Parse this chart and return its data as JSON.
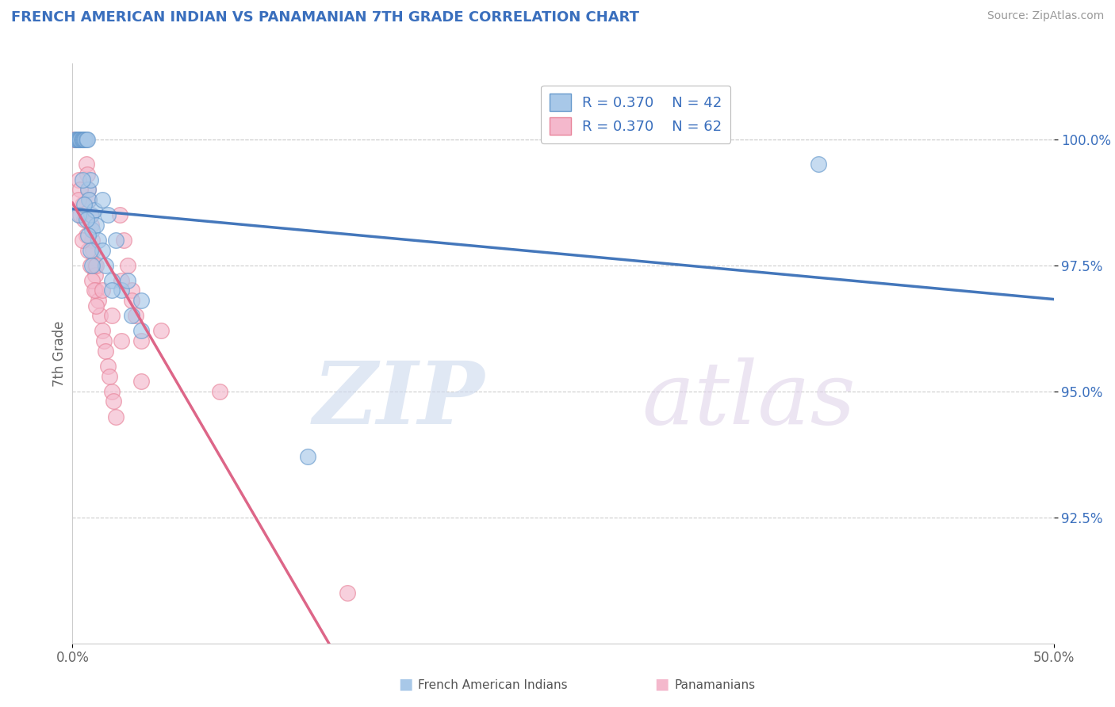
{
  "title": "FRENCH AMERICAN INDIAN VS PANAMANIAN 7TH GRADE CORRELATION CHART",
  "source": "Source: ZipAtlas.com",
  "ylabel": "7th Grade",
  "xlim": [
    0.0,
    50.0
  ],
  "ylim": [
    90.0,
    101.5
  ],
  "yticks": [
    92.5,
    95.0,
    97.5,
    100.0
  ],
  "ytick_labels": [
    "92.5%",
    "95.0%",
    "97.5%",
    "100.0%"
  ],
  "blue_color": "#a8c8e8",
  "pink_color": "#f4b8cc",
  "blue_edge_color": "#6699cc",
  "pink_edge_color": "#e8849a",
  "blue_line_color": "#4477bb",
  "pink_line_color": "#dd6688",
  "R_blue": 0.37,
  "N_blue": 42,
  "R_pink": 0.37,
  "N_pink": 62,
  "blue_x": [
    0.15,
    0.2,
    0.25,
    0.3,
    0.35,
    0.4,
    0.45,
    0.5,
    0.55,
    0.6,
    0.65,
    0.7,
    0.75,
    0.8,
    0.85,
    0.9,
    0.95,
    1.0,
    1.1,
    1.2,
    1.3,
    1.5,
    1.7,
    2.0,
    2.5,
    3.0,
    1.5,
    1.8,
    2.2,
    2.8,
    3.5,
    0.3,
    0.5,
    0.6,
    0.7,
    0.8,
    0.9,
    1.0,
    2.0,
    3.5,
    38.0,
    12.0
  ],
  "blue_y": [
    100.0,
    100.0,
    100.0,
    100.0,
    100.0,
    100.0,
    100.0,
    100.0,
    100.0,
    100.0,
    100.0,
    100.0,
    100.0,
    99.0,
    98.8,
    99.2,
    98.5,
    98.2,
    98.6,
    98.3,
    98.0,
    97.8,
    97.5,
    97.2,
    97.0,
    96.5,
    98.8,
    98.5,
    98.0,
    97.2,
    96.8,
    98.5,
    99.2,
    98.7,
    98.4,
    98.1,
    97.8,
    97.5,
    97.0,
    96.2,
    99.5,
    93.7
  ],
  "pink_x": [
    0.1,
    0.15,
    0.2,
    0.25,
    0.3,
    0.35,
    0.4,
    0.45,
    0.5,
    0.55,
    0.6,
    0.65,
    0.7,
    0.75,
    0.8,
    0.85,
    0.9,
    0.95,
    1.0,
    1.05,
    1.1,
    1.15,
    1.2,
    1.3,
    1.4,
    1.5,
    1.6,
    1.7,
    1.8,
    1.9,
    2.0,
    2.1,
    2.2,
    2.4,
    2.6,
    2.8,
    3.0,
    3.2,
    3.5,
    0.3,
    0.4,
    0.5,
    0.6,
    0.7,
    0.8,
    0.9,
    1.0,
    1.1,
    1.2,
    2.5,
    3.0,
    4.5,
    7.5,
    0.3,
    0.4,
    0.5,
    1.2,
    1.5,
    2.0,
    2.5,
    3.5,
    14.0
  ],
  "pink_y": [
    100.0,
    100.0,
    100.0,
    100.0,
    100.0,
    100.0,
    100.0,
    100.0,
    100.0,
    100.0,
    100.0,
    100.0,
    99.5,
    99.3,
    99.0,
    98.8,
    98.5,
    98.3,
    98.0,
    97.8,
    97.5,
    97.3,
    97.0,
    96.8,
    96.5,
    96.2,
    96.0,
    95.8,
    95.5,
    95.3,
    95.0,
    94.8,
    94.5,
    98.5,
    98.0,
    97.5,
    97.0,
    96.5,
    96.0,
    99.2,
    99.0,
    98.7,
    98.4,
    98.1,
    97.8,
    97.5,
    97.2,
    97.0,
    96.7,
    97.2,
    96.8,
    96.2,
    95.0,
    98.8,
    98.5,
    98.0,
    97.5,
    97.0,
    96.5,
    96.0,
    95.2,
    91.0
  ]
}
